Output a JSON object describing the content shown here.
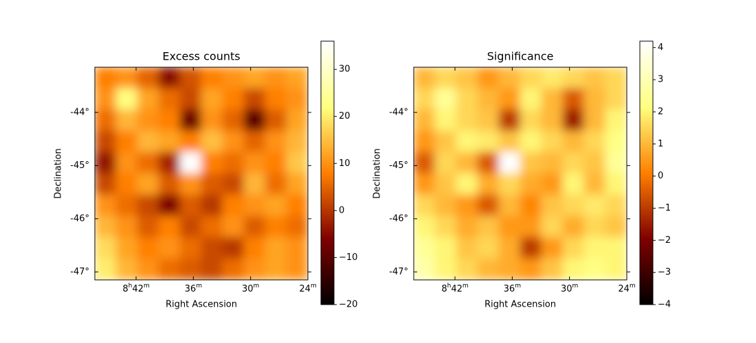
{
  "chart_data": [
    {
      "type": "heatmap",
      "title": "Excess counts",
      "xlabel": "Right Ascension",
      "ylabel": "Declination",
      "cmap": "afmhot",
      "xlim": [
        131.58,
        126.0
      ],
      "ylim": [
        -47.15,
        -43.15
      ],
      "xticks": [
        {
          "value": 130.5,
          "label": "8h42m"
        },
        {
          "value": 129.0,
          "label": "36m"
        },
        {
          "value": 127.5,
          "label": "30m"
        },
        {
          "value": 126.0,
          "label": "24m"
        }
      ],
      "yticks": [
        {
          "value": -44,
          "label": "-44°"
        },
        {
          "value": -45,
          "label": "-45°"
        },
        {
          "value": -46,
          "label": "-46°"
        },
        {
          "value": -47,
          "label": "-47°"
        }
      ],
      "zlim": [
        -20,
        36
      ],
      "zticks": [
        {
          "value": -20,
          "label": "−20"
        },
        {
          "value": -10,
          "label": "−10"
        },
        0,
        10,
        20,
        30
      ],
      "z": [
        [
          8,
          10,
          5,
          -5,
          3,
          8,
          10,
          12,
          10,
          12
        ],
        [
          10,
          22,
          12,
          6,
          2,
          12,
          8,
          2,
          8,
          10
        ],
        [
          6,
          14,
          10,
          8,
          -8,
          10,
          5,
          -10,
          4,
          12
        ],
        [
          2,
          8,
          14,
          12,
          8,
          15,
          10,
          5,
          10,
          14
        ],
        [
          -4,
          10,
          6,
          -2,
          36,
          8,
          6,
          10,
          8,
          16
        ],
        [
          2,
          8,
          12,
          4,
          10,
          4,
          2,
          14,
          6,
          12
        ],
        [
          10,
          6,
          2,
          -6,
          4,
          0,
          8,
          10,
          12,
          8
        ],
        [
          14,
          10,
          4,
          8,
          2,
          6,
          10,
          4,
          8,
          6
        ],
        [
          18,
          12,
          8,
          10,
          6,
          2,
          0,
          8,
          12,
          10
        ],
        [
          20,
          14,
          10,
          6,
          4,
          2,
          6,
          10,
          12,
          10
        ]
      ]
    },
    {
      "type": "heatmap",
      "title": "Significance",
      "xlabel": "Right Ascension",
      "ylabel": "Declination",
      "cmap": "afmhot",
      "xlim": [
        131.58,
        126.0
      ],
      "ylim": [
        -47.15,
        -43.15
      ],
      "xticks": [
        {
          "value": 130.5,
          "label": "8h42m"
        },
        {
          "value": 129.0,
          "label": "36m"
        },
        {
          "value": 127.5,
          "label": "30m"
        },
        {
          "value": 126.0,
          "label": "24m"
        }
      ],
      "yticks": [
        {
          "value": -44,
          "label": "-44°"
        },
        {
          "value": -45,
          "label": "-45°"
        },
        {
          "value": -46,
          "label": "-46°"
        },
        {
          "value": -47,
          "label": "-47°"
        }
      ],
      "zlim": [
        -4,
        4.2
      ],
      "zticks": [
        {
          "value": -4,
          "label": "−4"
        },
        {
          "value": -3,
          "label": "−3"
        },
        {
          "value": -2,
          "label": "−2"
        },
        {
          "value": -1,
          "label": "−1"
        },
        0,
        1,
        2,
        3,
        4
      ],
      "z": [
        [
          1,
          1.5,
          1.2,
          0.5,
          1,
          1.5,
          1.8,
          1.5,
          1.2,
          1.5
        ],
        [
          1.5,
          2.5,
          1.5,
          1,
          0.5,
          2,
          1,
          -0.5,
          1,
          1.5
        ],
        [
          1,
          2,
          1.5,
          1.2,
          -1,
          1.5,
          1,
          -1.5,
          1,
          2
        ],
        [
          0.5,
          1.2,
          2,
          1.8,
          1.2,
          2,
          1.5,
          1,
          1.5,
          2.2
        ],
        [
          -0.5,
          1.5,
          1,
          -0.5,
          4.2,
          1.2,
          1,
          1.5,
          1.2,
          2.5
        ],
        [
          0.5,
          1.2,
          2,
          0.8,
          1.5,
          0.8,
          0.5,
          2,
          1,
          2
        ],
        [
          1.5,
          1,
          0.5,
          -0.5,
          1,
          0.2,
          1.2,
          1.5,
          1.8,
          1.5
        ],
        [
          2,
          1.5,
          0.8,
          1.2,
          0.5,
          0.5,
          1.5,
          0.8,
          1.5,
          1.2
        ],
        [
          2.5,
          2,
          1.2,
          1.5,
          0.8,
          -1,
          0.5,
          1.5,
          2,
          2
        ],
        [
          2.8,
          2,
          1.5,
          1,
          0.8,
          0.5,
          1.2,
          2,
          2.2,
          2
        ]
      ]
    }
  ]
}
